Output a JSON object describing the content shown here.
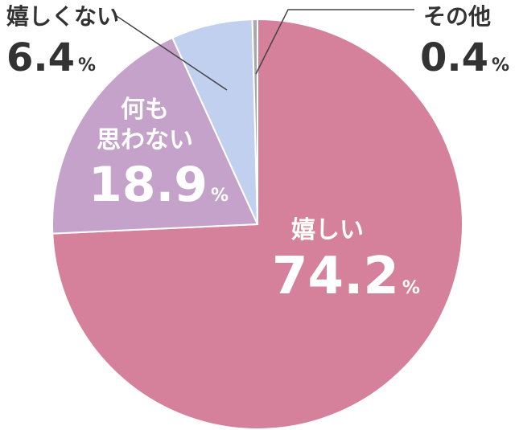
{
  "chart_data": {
    "type": "pie",
    "categories": [
      "嬉しい",
      "何も\n思わない",
      "嬉しくない",
      "その他"
    ],
    "values": [
      74.2,
      18.9,
      6.4,
      0.4
    ],
    "unit": "%",
    "colors": [
      "#d6819b",
      "#c4a2ca",
      "#c0d0ee",
      "#a9a9a9"
    ]
  }
}
